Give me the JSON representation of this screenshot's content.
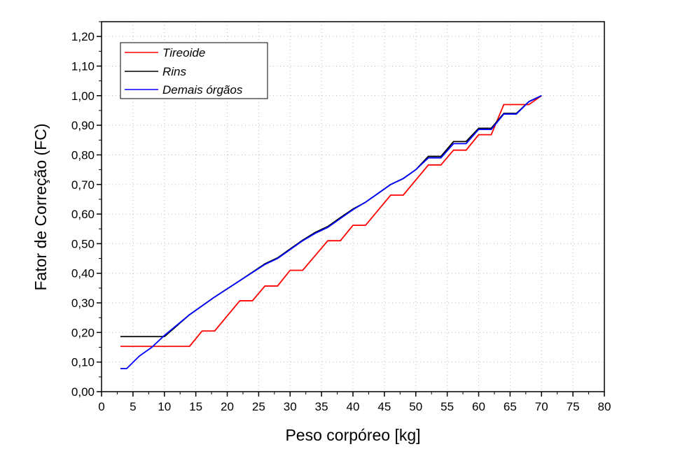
{
  "chart_data": {
    "type": "line",
    "title": "",
    "xlabel": "Peso corpóreo [kg]",
    "ylabel": "Fator de Correção (FC)",
    "xlim": [
      0,
      80
    ],
    "ylim": [
      0,
      1.25
    ],
    "xticks": [
      "0",
      "5",
      "10",
      "15",
      "20",
      "25",
      "30",
      "35",
      "40",
      "45",
      "50",
      "55",
      "60",
      "65",
      "70",
      "75",
      "80"
    ],
    "yticks": [
      "0,00",
      "0,10",
      "0,20",
      "0,30",
      "0,40",
      "0,50",
      "0,60",
      "0,70",
      "0,80",
      "0,90",
      "1,00",
      "1,10",
      "1,20"
    ],
    "grid": true,
    "legend_position": "top-left",
    "series": [
      {
        "name": "Tireoide",
        "color": "#ff0000",
        "x": [
          3,
          14,
          16,
          18,
          22,
          24,
          26,
          28,
          30,
          32,
          36,
          38,
          40,
          42,
          46,
          48,
          52,
          54,
          56,
          58,
          60,
          62,
          64,
          68,
          70
        ],
        "y": [
          0.153,
          0.153,
          0.205,
          0.205,
          0.307,
          0.307,
          0.357,
          0.357,
          0.41,
          0.41,
          0.51,
          0.51,
          0.562,
          0.562,
          0.664,
          0.664,
          0.766,
          0.766,
          0.816,
          0.816,
          0.868,
          0.868,
          0.97,
          0.97,
          1.0
        ]
      },
      {
        "name": "Rins",
        "color": "#000000",
        "x": [
          3,
          10,
          14,
          18,
          22,
          26,
          28,
          30,
          32,
          34,
          36,
          38,
          40,
          42,
          44,
          46,
          48,
          50,
          52,
          54,
          56,
          58,
          60,
          62,
          64,
          66,
          68,
          70
        ],
        "y": [
          0.186,
          0.186,
          0.26,
          0.32,
          0.375,
          0.432,
          0.452,
          0.482,
          0.512,
          0.538,
          0.558,
          0.588,
          0.617,
          0.64,
          0.67,
          0.7,
          0.72,
          0.75,
          0.795,
          0.795,
          0.845,
          0.845,
          0.89,
          0.89,
          0.94,
          0.94,
          0.98,
          1.0
        ]
      },
      {
        "name": "Demais órgãos",
        "color": "#0000ff",
        "x": [
          3,
          4,
          6,
          8,
          10,
          14,
          18,
          22,
          26,
          28,
          30,
          32,
          34,
          36,
          38,
          40,
          42,
          44,
          46,
          48,
          50,
          52,
          54,
          56,
          58,
          60,
          62,
          64,
          66,
          68,
          70
        ],
        "y": [
          0.078,
          0.078,
          0.12,
          0.15,
          0.19,
          0.26,
          0.32,
          0.375,
          0.43,
          0.45,
          0.48,
          0.51,
          0.535,
          0.555,
          0.585,
          0.615,
          0.64,
          0.67,
          0.7,
          0.72,
          0.75,
          0.79,
          0.79,
          0.838,
          0.838,
          0.886,
          0.886,
          0.938,
          0.938,
          0.98,
          1.0
        ]
      }
    ]
  }
}
